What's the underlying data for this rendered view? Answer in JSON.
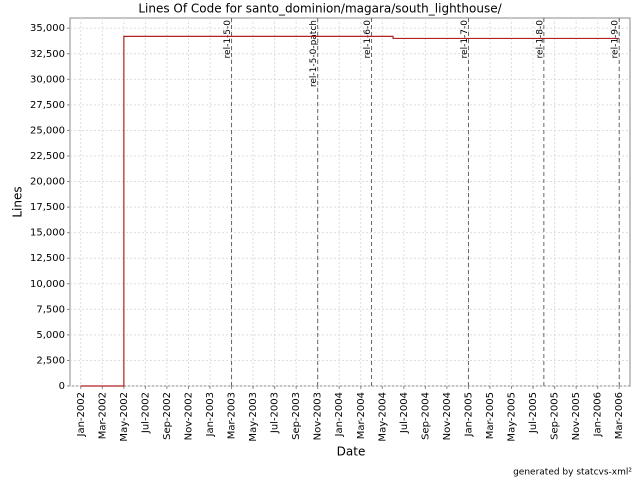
{
  "chart_data": {
    "type": "line",
    "title": "Lines Of Code for santo_dominion/magara/south_lighthouse/",
    "x_label": "Date",
    "y_label": "Lines",
    "footer": "generated by statcvs-xml²",
    "x": [
      "2002-01",
      "2002-05",
      "2002-05",
      "2004-06",
      "2004-06",
      "2006-03"
    ],
    "values": [
      0,
      0,
      34200,
      34200,
      34000,
      34000
    ],
    "color": "#b22222",
    "xlim": [
      "2001-12",
      "2006-04"
    ],
    "xticks": [
      {
        "value": "2002-01",
        "label": "Jan-2002"
      },
      {
        "value": "2002-03",
        "label": "Mar-2002"
      },
      {
        "value": "2002-05",
        "label": "May-2002"
      },
      {
        "value": "2002-07",
        "label": "Jul-2002"
      },
      {
        "value": "2002-09",
        "label": "Sep-2002"
      },
      {
        "value": "2002-11",
        "label": "Nov-2002"
      },
      {
        "value": "2003-01",
        "label": "Jan-2003"
      },
      {
        "value": "2003-03",
        "label": "Mar-2003"
      },
      {
        "value": "2003-05",
        "label": "May-2003"
      },
      {
        "value": "2003-07",
        "label": "Jul-2003"
      },
      {
        "value": "2003-09",
        "label": "Sep-2003"
      },
      {
        "value": "2003-11",
        "label": "Nov-2003"
      },
      {
        "value": "2004-01",
        "label": "Jan-2004"
      },
      {
        "value": "2004-03",
        "label": "Mar-2004"
      },
      {
        "value": "2004-05",
        "label": "May-2004"
      },
      {
        "value": "2004-07",
        "label": "Jul-2004"
      },
      {
        "value": "2004-09",
        "label": "Sep-2004"
      },
      {
        "value": "2004-11",
        "label": "Nov-2004"
      },
      {
        "value": "2005-01",
        "label": "Jan-2005"
      },
      {
        "value": "2005-03",
        "label": "Mar-2005"
      },
      {
        "value": "2005-05",
        "label": "May-2005"
      },
      {
        "value": "2005-07",
        "label": "Jul-2005"
      },
      {
        "value": "2005-09",
        "label": "Sep-2005"
      },
      {
        "value": "2005-11",
        "label": "Nov-2005"
      },
      {
        "value": "2006-01",
        "label": "Jan-2006"
      },
      {
        "value": "2006-03",
        "label": "Mar-2006"
      }
    ],
    "ylim": [
      0,
      36000
    ],
    "yticks": [
      0,
      {
        "value": 2500,
        "label": "2,500"
      },
      {
        "value": 5000,
        "label": "5,000"
      },
      {
        "value": 7500,
        "label": "7,500"
      },
      {
        "value": 10000,
        "label": "10,000"
      },
      {
        "value": 12500,
        "label": "12,500"
      },
      {
        "value": 15000,
        "label": "15,000"
      },
      {
        "value": 17500,
        "label": "17,500"
      },
      {
        "value": 20000,
        "label": "20,000"
      },
      {
        "value": 22500,
        "label": "22,500"
      },
      {
        "value": 25000,
        "label": "25,000"
      },
      {
        "value": 27500,
        "label": "27,500"
      },
      {
        "value": 30000,
        "label": "30,000"
      },
      {
        "value": 32500,
        "label": "32,500"
      },
      {
        "value": 35000,
        "label": "35,000"
      }
    ],
    "grid": true,
    "annotations": [
      {
        "x": "2003-03",
        "label": "rel-1-5-0"
      },
      {
        "x": "2003-11",
        "label": "rel-1-5-0-patch"
      },
      {
        "x": "2004-04",
        "label": "rel-1-6-0"
      },
      {
        "x": "2005-01",
        "label": "rel-1-7-0"
      },
      {
        "x": "2005-08",
        "label": "rel-1-8-0"
      },
      {
        "x": "2006-03",
        "label": "rel-1-9-0"
      }
    ]
  }
}
